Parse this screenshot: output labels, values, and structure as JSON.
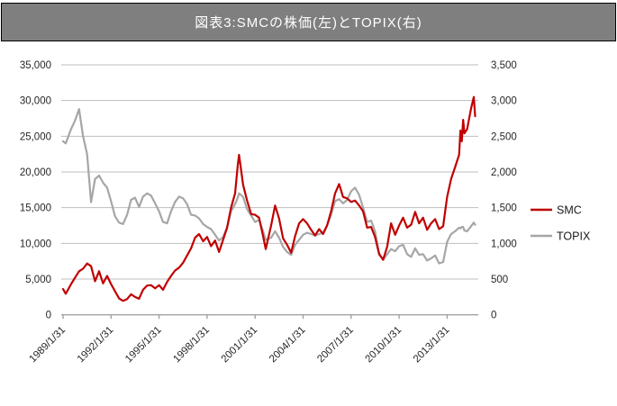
{
  "title": "図表3:SMCの株価(左)とTOPIX(右)",
  "colors": {
    "smc_line": "#C00000",
    "topix_line": "#A6A6A6",
    "grid": "#BEBEBE",
    "axis": "#A3A3A3",
    "tick_text": "#262626",
    "title_bg": "#7F7F7F",
    "title_text": "#FFFFFF"
  },
  "legend": [
    {
      "label": "SMC",
      "color": "#C00000"
    },
    {
      "label": "TOPIX",
      "color": "#A6A6A6"
    }
  ],
  "left_axis": {
    "tick_labels": [
      "35,000",
      "30,000",
      "25,000",
      "20,000",
      "15,000",
      "10,000",
      "5,000",
      "0"
    ],
    "min": 0,
    "max": 35000,
    "step": 5000
  },
  "right_axis": {
    "tick_labels": [
      "3,500",
      "3,000",
      "2,500",
      "2,000",
      "1,500",
      "1,000",
      "500",
      "0"
    ],
    "min": 0,
    "max": 3500,
    "step": 500
  },
  "chart_data": {
    "type": "line",
    "title": "図表3:SMCの株価(左)とTOPIX(右)",
    "grid": "horizontal-only",
    "legend_position": "right",
    "left_ylim": [
      0,
      35000
    ],
    "right_ylim": [
      0,
      3500
    ],
    "x_tick_labels": [
      "1989/1/31",
      "1992/1/31",
      "1995/1/31",
      "1998/1/31",
      "2001/1/31",
      "2004/1/31",
      "2007/1/31",
      "2010/1/31",
      "2013/1/31"
    ],
    "x_tick_interval_months": 36,
    "x_start": "1989/1",
    "x_end": "2014/10",
    "x": [
      "1989/1",
      "1989/3",
      "1989/7",
      "1989/10",
      "1990/1",
      "1990/4",
      "1990/7",
      "1990/10",
      "1991/1",
      "1991/4",
      "1991/7",
      "1991/10",
      "1992/1",
      "1992/4",
      "1992/7",
      "1992/10",
      "1993/1",
      "1993/4",
      "1993/7",
      "1993/10",
      "1994/1",
      "1994/4",
      "1994/7",
      "1994/10",
      "1995/1",
      "1995/4",
      "1995/7",
      "1995/10",
      "1996/1",
      "1996/4",
      "1996/7",
      "1996/10",
      "1997/1",
      "1997/4",
      "1997/7",
      "1997/10",
      "1998/1",
      "1998/4",
      "1998/7",
      "1998/10",
      "1999/1",
      "1999/4",
      "1999/7",
      "1999/10",
      "1999/12",
      "2000/1",
      "2000/4",
      "2000/7",
      "2000/10",
      "2001/1",
      "2001/4",
      "2001/7",
      "2001/9",
      "2002/1",
      "2002/4",
      "2002/7",
      "2002/10",
      "2003/1",
      "2003/4",
      "2003/7",
      "2003/10",
      "2004/1",
      "2004/4",
      "2004/7",
      "2004/10",
      "2005/1",
      "2005/4",
      "2005/7",
      "2005/10",
      "2006/1",
      "2006/4",
      "2006/7",
      "2006/10",
      "2007/1",
      "2007/4",
      "2007/7",
      "2007/10",
      "2008/1",
      "2008/4",
      "2008/7",
      "2008/10",
      "2009/1",
      "2009/4",
      "2009/7",
      "2009/10",
      "2010/1",
      "2010/4",
      "2010/7",
      "2010/10",
      "2011/1",
      "2011/4",
      "2011/7",
      "2011/10",
      "2012/1",
      "2012/4",
      "2012/7",
      "2012/10",
      "2013/1",
      "2013/4",
      "2013/7",
      "2013/10",
      "2013/11",
      "2013/12",
      "2014/1",
      "2014/2",
      "2014/4",
      "2014/7",
      "2014/9",
      "2014/10"
    ],
    "series": [
      {
        "name": "SMC",
        "axis": "left",
        "color": "#C00000",
        "values": [
          3600,
          2950,
          4300,
          5200,
          6100,
          6450,
          7180,
          6800,
          4700,
          6100,
          4400,
          5450,
          4300,
          3300,
          2300,
          1950,
          2200,
          2870,
          2500,
          2250,
          3500,
          4100,
          4150,
          3700,
          4150,
          3500,
          4600,
          5450,
          6200,
          6600,
          7300,
          8300,
          9300,
          10800,
          11300,
          10300,
          10900,
          9600,
          10400,
          8800,
          10500,
          12200,
          15000,
          17000,
          21000,
          22400,
          18200,
          16000,
          14100,
          14000,
          13600,
          11000,
          9200,
          12500,
          15300,
          13500,
          10700,
          9800,
          8700,
          11000,
          12800,
          13400,
          12800,
          11900,
          11100,
          12000,
          11300,
          12500,
          14500,
          17000,
          18300,
          16500,
          16300,
          15800,
          16000,
          15300,
          14500,
          12200,
          12300,
          10900,
          8500,
          7700,
          9500,
          12800,
          11200,
          12500,
          13600,
          12200,
          12600,
          14400,
          12800,
          13600,
          11900,
          12800,
          13400,
          12000,
          12400,
          16500,
          19000,
          20700,
          22400,
          25800,
          24300,
          27300,
          25400,
          26000,
          28900,
          30500,
          27800
        ]
      },
      {
        "name": "TOPIX",
        "axis": "right",
        "color": "#A6A6A6",
        "values": [
          2430,
          2400,
          2600,
          2720,
          2880,
          2500,
          2250,
          1575,
          1900,
          1950,
          1850,
          1780,
          1590,
          1380,
          1290,
          1270,
          1400,
          1610,
          1640,
          1510,
          1655,
          1700,
          1670,
          1560,
          1450,
          1300,
          1280,
          1450,
          1580,
          1655,
          1630,
          1550,
          1400,
          1390,
          1350,
          1270,
          1230,
          1200,
          1120,
          1040,
          1090,
          1220,
          1450,
          1550,
          1640,
          1700,
          1650,
          1480,
          1390,
          1300,
          1330,
          1170,
          1050,
          1080,
          1170,
          1080,
          950,
          880,
          840,
          980,
          1050,
          1120,
          1150,
          1130,
          1110,
          1130,
          1150,
          1250,
          1400,
          1590,
          1620,
          1560,
          1610,
          1730,
          1780,
          1680,
          1500,
          1300,
          1320,
          1170,
          860,
          770,
          850,
          920,
          890,
          960,
          980,
          850,
          810,
          930,
          840,
          850,
          760,
          790,
          830,
          720,
          740,
          1020,
          1130,
          1170,
          1220,
          1210,
          1230,
          1230,
          1180,
          1170,
          1240,
          1290,
          1260
        ]
      }
    ]
  }
}
